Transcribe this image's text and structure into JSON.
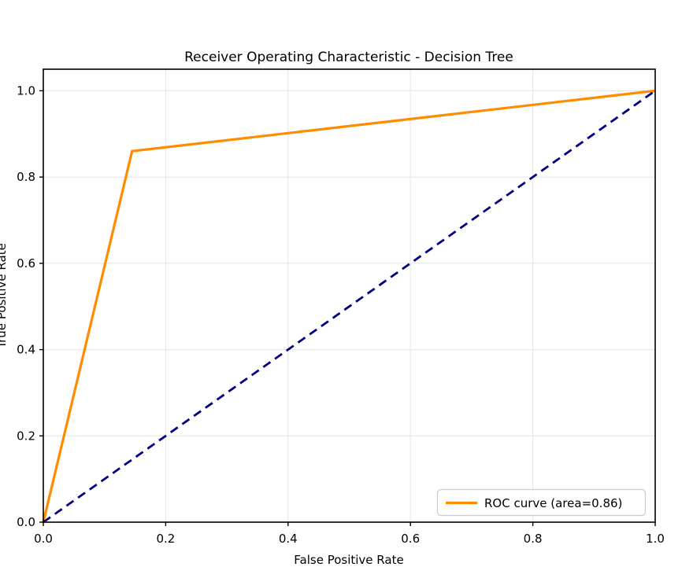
{
  "chart_data": {
    "type": "line",
    "title": "Receiver Operating Characteristic - Decision Tree",
    "xlabel": "False Positive Rate",
    "ylabel": "True Positive Rate",
    "xlim": [
      0.0,
      1.0
    ],
    "ylim": [
      0.0,
      1.05
    ],
    "x_tick_values": [
      0.0,
      0.2,
      0.4,
      0.6,
      0.8,
      1.0
    ],
    "x_tick_labels": [
      "0.0",
      "0.2",
      "0.4",
      "0.6",
      "0.8",
      "1.0"
    ],
    "y_tick_values": [
      0.0,
      0.2,
      0.4,
      0.6,
      0.8,
      1.0
    ],
    "y_tick_labels": [
      "0.0",
      "0.2",
      "0.4",
      "0.6",
      "0.8",
      "1.0"
    ],
    "grid": true,
    "auc": 0.86,
    "series": [
      {
        "name": "ROC curve",
        "color": "#ff8c00",
        "style": "solid",
        "width": 3.2,
        "points": [
          [
            0.0,
            0.0
          ],
          [
            0.145,
            0.86
          ],
          [
            1.0,
            1.0
          ]
        ]
      },
      {
        "name": "chance-diagonal",
        "color": "#000080",
        "style": "dashed",
        "width": 2.8,
        "points": [
          [
            0.0,
            0.0
          ],
          [
            1.0,
            1.0
          ]
        ]
      }
    ],
    "legend": {
      "position": "lower right",
      "entries": [
        {
          "label": "ROC curve (area=0.86)",
          "color": "#ff8c00",
          "style": "solid"
        }
      ]
    },
    "colors": {
      "background": "#ffffff",
      "grid": "#e6e6e6",
      "spine": "#000000",
      "tick": "#000000",
      "legend_border": "#cccccc",
      "legend_fill": "#ffffff"
    }
  }
}
